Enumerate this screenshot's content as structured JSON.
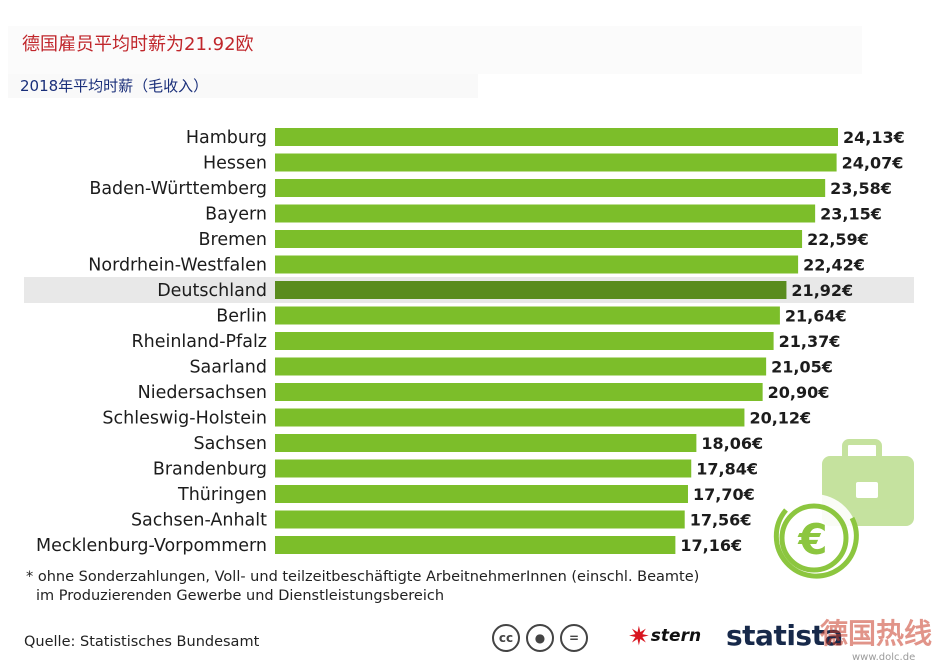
{
  "header": {
    "title": "德国雇员平均时薪为21.92欧",
    "subtitle": "2018年平均时薪（毛收入）"
  },
  "chart_data": {
    "type": "bar",
    "orientation": "horizontal",
    "categories": [
      "Hamburg",
      "Hessen",
      "Baden-Württemberg",
      "Bayern",
      "Bremen",
      "Nordrhein-Westfalen",
      "Deutschland",
      "Berlin",
      "Rheinland-Pfalz",
      "Saarland",
      "Niedersachsen",
      "Schleswig-Holstein",
      "Sachsen",
      "Brandenburg",
      "Thüringen",
      "Sachsen-Anhalt",
      "Mecklenburg-Vorpommern"
    ],
    "values": [
      24.13,
      24.07,
      23.58,
      23.15,
      22.59,
      22.42,
      21.92,
      21.64,
      21.37,
      21.05,
      20.9,
      20.12,
      18.06,
      17.84,
      17.7,
      17.56,
      17.16
    ],
    "value_labels": [
      "24,13€",
      "24,07€",
      "23,58€",
      "23,15€",
      "22,59€",
      "22,42€",
      "21,92€",
      "21,64€",
      "21,37€",
      "21,05€",
      "20,90€",
      "20,12€",
      "18,06€",
      "17,84€",
      "17,70€",
      "17,56€",
      "17,16€"
    ],
    "highlight": "Deutschland",
    "xlim": [
      0,
      24.13
    ],
    "colors": {
      "bar": "#7cbe2a",
      "highlight_bar": "#5a8c1e",
      "highlight_row": "#e8e8e8"
    }
  },
  "footer": {
    "footnote_line1": "* ohne Sonderzahlungen, Voll- und teilzeitbeschäftigte ArbeitnehmerInnen (einschl. Beamte)",
    "footnote_line2": "im Produzierenden Gewerbe und Dienstleistungsbereich",
    "source": "Quelle: Statistisches Bundesamt",
    "stern_logo": "stern",
    "statista_logo": "statista",
    "watermark": "德国热线",
    "watermark_url": "www.dolc.de"
  },
  "icons": [
    "creative-commons-icon",
    "attribution-icon",
    "no-derivatives-icon",
    "briefcase-icon",
    "euro-coin-icon"
  ]
}
